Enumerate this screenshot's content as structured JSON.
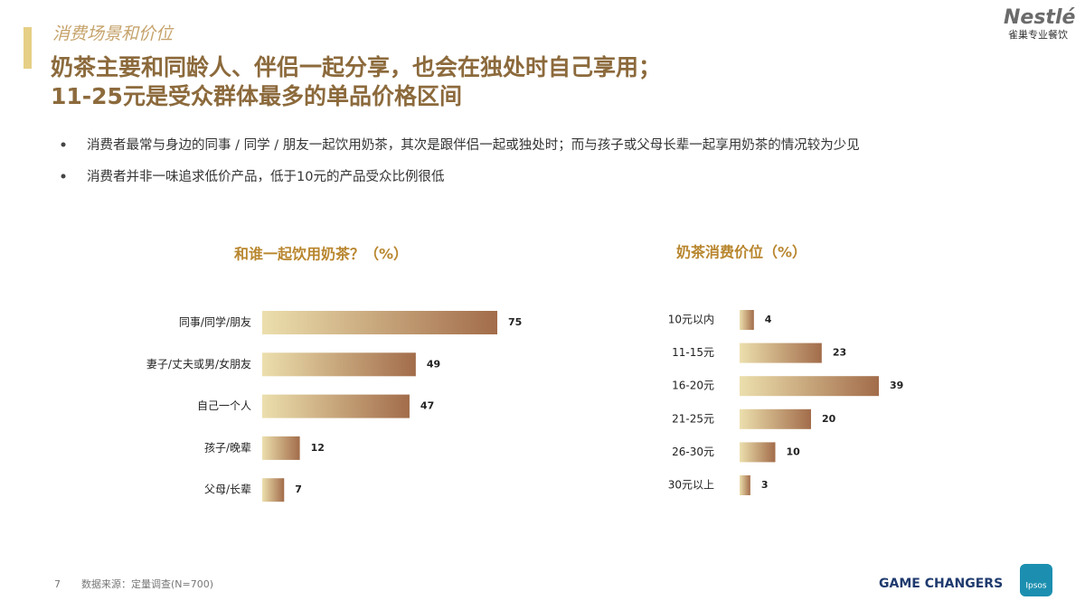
{
  "header": {
    "section": "消费场景和价位",
    "title_lines": [
      "奶茶主要和同龄人、伴侣一起分享，也会在独处时自己享用；",
      "11-25元是受众群体最多的单品价格区间"
    ]
  },
  "logo": {
    "brand": "Nestlé",
    "subtitle": "雀巢专业餐饮"
  },
  "bullets": [
    "消费者最常与身边的同事 / 同学 / 朋友一起饮用奶茶，其次是跟伴侣一起或独处时；而与孩子或父母长辈一起享用奶茶的情况较为少见",
    "消费者并非一味追求低价产品，低于10元的产品受众比例很低"
  ],
  "chart_data": [
    {
      "type": "bar",
      "orientation": "horizontal",
      "title": "和谁一起饮用奶茶？（%）",
      "categories": [
        "同事/同学/朋友",
        "妻子/丈夫或男/女朋友",
        "自己一个人",
        "孩子/晚辈",
        "父母/长辈"
      ],
      "values": [
        75,
        49,
        47,
        12,
        7
      ],
      "colors": [
        "#ecdfad",
        "#a26c4a"
      ]
    },
    {
      "type": "bar",
      "orientation": "horizontal",
      "title": "奶茶消费价位（%）",
      "categories": [
        "10元以内",
        "11-15元",
        "16-20元",
        "21-25元",
        "26-30元",
        "30元以上"
      ],
      "values": [
        4,
        23,
        39,
        20,
        10,
        3
      ],
      "colors": [
        "#ecdfad",
        "#a26c4a"
      ]
    }
  ],
  "footer": {
    "page": "7",
    "source": "数据来源：定量调查(N=700)",
    "tagline": "GAME CHANGERS",
    "ipsos": "Ipsos"
  }
}
